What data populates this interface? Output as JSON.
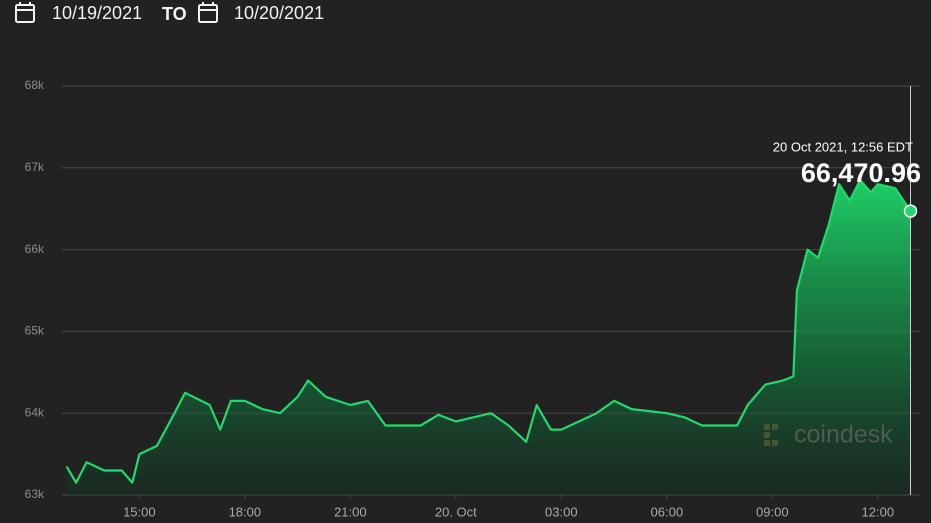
{
  "header": {
    "start_date": "10/19/2021",
    "separator": "TO",
    "end_date": "10/20/2021"
  },
  "watermark": "coindesk",
  "chart_data": {
    "type": "area",
    "color": "#22d96c",
    "x": [
      12.93,
      13.2,
      13.5,
      14.0,
      14.5,
      14.8,
      15.0,
      15.5,
      16.0,
      16.3,
      17.0,
      17.3,
      17.6,
      18.0,
      18.5,
      19.0,
      19.5,
      19.8,
      20.3,
      21.0,
      21.5,
      22.0,
      23.0,
      23.5,
      24.0,
      25.0,
      25.5,
      26.0,
      26.3,
      26.7,
      27.0,
      28.0,
      28.5,
      29.0,
      30.0,
      30.5,
      31.0,
      32.0,
      32.3,
      32.8,
      33.3,
      33.6,
      33.7,
      34.0,
      34.3,
      34.6,
      34.9,
      35.2,
      35.5,
      35.8,
      36.0,
      36.5,
      36.93
    ],
    "values": [
      63350,
      63150,
      63400,
      63300,
      63300,
      63150,
      63500,
      63600,
      64000,
      64250,
      64100,
      63800,
      64150,
      64150,
      64050,
      64000,
      64200,
      64400,
      64200,
      64100,
      64150,
      63850,
      63850,
      63980,
      63900,
      64000,
      63850,
      63650,
      64100,
      63800,
      63800,
      64000,
      64150,
      64050,
      64000,
      63950,
      63850,
      63850,
      64100,
      64350,
      64400,
      64450,
      65500,
      66000,
      65900,
      66300,
      66800,
      66600,
      66850,
      66700,
      66800,
      66750,
      66470.96
    ],
    "value_labels": {
      "52": "66,470.96"
    },
    "annotation": "20 Oct 2021, 12:56 EDT",
    "xlim": [
      12.8,
      37.2
    ],
    "xticks": [
      {
        "value": 15,
        "label": "15:00"
      },
      {
        "value": 18,
        "label": "18:00"
      },
      {
        "value": 21,
        "label": "21:00"
      },
      {
        "value": 24,
        "label": "20. Oct"
      },
      {
        "value": 27,
        "label": "03:00"
      },
      {
        "value": 30,
        "label": "06:00"
      },
      {
        "value": 33,
        "label": "09:00"
      },
      {
        "value": 36,
        "label": "12:00"
      }
    ],
    "ylim": [
      63000,
      68000
    ],
    "yticks": [
      {
        "value": 63000,
        "label": "63k"
      },
      {
        "value": 64000,
        "label": "64k"
      },
      {
        "value": 65000,
        "label": "65k"
      },
      {
        "value": 66000,
        "label": "66k"
      },
      {
        "value": 67000,
        "label": "67k"
      },
      {
        "value": 68000,
        "label": "68k"
      }
    ],
    "grid": true
  }
}
